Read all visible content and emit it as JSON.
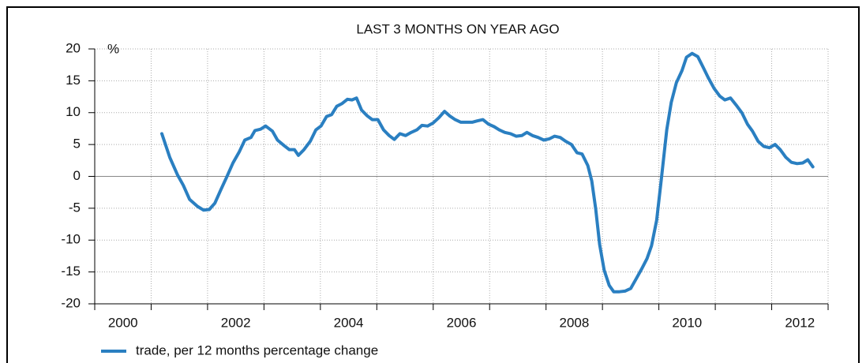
{
  "chart_data": {
    "type": "line",
    "title": "LAST 3 MONTHS ON YEAR AGO",
    "y_unit_label": "%",
    "x": [
      2001.19,
      2001.33,
      2001.47,
      2001.57,
      2001.68,
      2001.82,
      2001.93,
      2002.03,
      2002.13,
      2002.24,
      2002.34,
      2002.45,
      2002.56,
      2002.66,
      2002.77,
      2002.84,
      2002.94,
      2003.03,
      2003.15,
      2003.24,
      2003.36,
      2003.45,
      2003.54,
      2003.61,
      2003.71,
      2003.82,
      2003.92,
      2004.01,
      2004.11,
      2004.2,
      2004.29,
      2004.38,
      2004.48,
      2004.56,
      2004.64,
      2004.73,
      2004.83,
      2004.92,
      2005.02,
      2005.12,
      2005.22,
      2005.31,
      2005.41,
      2005.51,
      2005.61,
      2005.71,
      2005.8,
      2005.9,
      2006.0,
      2006.1,
      2006.2,
      2006.29,
      2006.39,
      2006.49,
      2006.59,
      2006.69,
      2006.78,
      2006.88,
      2006.98,
      2007.08,
      2007.17,
      2007.27,
      2007.37,
      2007.47,
      2007.57,
      2007.66,
      2007.76,
      2007.86,
      2007.96,
      2008.06,
      2008.15,
      2008.25,
      2008.35,
      2008.45,
      2008.55,
      2008.64,
      2008.74,
      2008.81,
      2008.88,
      2008.95,
      2009.03,
      2009.12,
      2009.2,
      2009.3,
      2009.4,
      2009.5,
      2009.59,
      2009.69,
      2009.79,
      2009.87,
      2009.96,
      2010.04,
      2010.14,
      2010.22,
      2010.31,
      2010.41,
      2010.49,
      2010.59,
      2010.69,
      2010.78,
      2010.88,
      2010.98,
      2011.08,
      2011.17,
      2011.27,
      2011.37,
      2011.47,
      2011.57,
      2011.66,
      2011.76,
      2011.86,
      2011.96,
      2012.06,
      2012.15,
      2012.25,
      2012.35,
      2012.45,
      2012.55,
      2012.64,
      2012.73
    ],
    "series": [
      {
        "name": "trade, per 12 months percentage change",
        "color": "#2a7fc1",
        "values": [
          6.7,
          3.0,
          0.2,
          -1.4,
          -3.6,
          -4.7,
          -5.3,
          -5.2,
          -4.2,
          -2.0,
          -0.1,
          2.1,
          3.8,
          5.7,
          6.1,
          7.2,
          7.4,
          7.9,
          7.1,
          5.7,
          4.8,
          4.2,
          4.2,
          3.3,
          4.2,
          5.5,
          7.3,
          7.9,
          9.4,
          9.7,
          11.0,
          11.4,
          12.1,
          12.0,
          12.3,
          10.4,
          9.5,
          8.9,
          8.9,
          7.3,
          6.4,
          5.8,
          6.7,
          6.4,
          6.9,
          7.3,
          8.0,
          7.9,
          8.4,
          9.2,
          10.2,
          9.5,
          8.9,
          8.5,
          8.5,
          8.5,
          8.7,
          8.9,
          8.2,
          7.8,
          7.3,
          6.9,
          6.7,
          6.3,
          6.4,
          6.9,
          6.4,
          6.1,
          5.7,
          5.9,
          6.3,
          6.1,
          5.5,
          5.0,
          3.7,
          3.5,
          1.7,
          -0.7,
          -5.1,
          -10.7,
          -14.7,
          -17.1,
          -18.1,
          -18.1,
          -18.0,
          -17.6,
          -16.2,
          -14.6,
          -12.9,
          -10.9,
          -6.9,
          -0.7,
          7.3,
          11.6,
          14.7,
          16.6,
          18.7,
          19.3,
          18.8,
          17.2,
          15.4,
          13.8,
          12.6,
          12.0,
          12.3,
          11.2,
          10.0,
          8.2,
          7.1,
          5.5,
          4.7,
          4.5,
          5.0,
          4.2,
          3.0,
          2.2,
          2.0,
          2.1,
          2.6,
          1.5
        ]
      }
    ],
    "xlim": [
      2000,
      2013
    ],
    "xticks": [
      {
        "value": 2000.5,
        "label": "2000"
      },
      {
        "value": 2002.5,
        "label": "2002"
      },
      {
        "value": 2004.5,
        "label": "2004"
      },
      {
        "value": 2006.5,
        "label": "2006"
      },
      {
        "value": 2008.5,
        "label": "2008"
      },
      {
        "value": 2010.5,
        "label": "2010"
      },
      {
        "value": 2012.5,
        "label": "2012"
      }
    ],
    "xminorticks": [
      2000,
      2001,
      2002,
      2003,
      2004,
      2005,
      2006,
      2007,
      2008,
      2009,
      2010,
      2011,
      2012,
      2013
    ],
    "ylim": [
      -20,
      20
    ],
    "yticks": [
      -20,
      -15,
      -10,
      -5,
      0,
      5,
      10,
      15,
      20
    ],
    "grid": true,
    "legend": "bottom-left"
  }
}
